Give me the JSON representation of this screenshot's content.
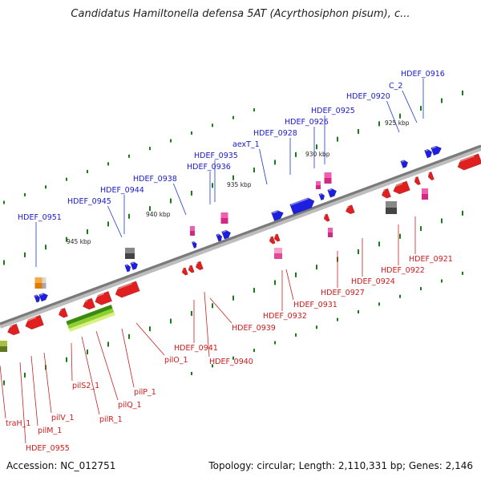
{
  "title": "Candidatus Hamiltonella defensa 5AT (Acyrthosiphon pisum), c...",
  "footer": {
    "accession": "Accession: NC_012751",
    "summary": "Topology: circular; Length: 2,110,331 bp; Genes: 2,146"
  },
  "colors": {
    "backbone": "#8a8a8a",
    "forward_label": "#1a1acc",
    "reverse_label": "#cc1a1a",
    "forward_gene": "#1e1ee0",
    "reverse_gene": "#e02020",
    "pseudo_pink": "#e0308a",
    "grey_feature": "#666666",
    "orange_feature": "#f08a10",
    "green_feature": "#5aa010",
    "tick_dot": "#1c7a1c"
  },
  "ticks": [
    "925 kbp",
    "930 kbp",
    "935 kbp",
    "940 kbp",
    "945 kbp"
  ],
  "forward_labels": [
    "HDEF_0916",
    "C_2",
    "HDEF_0920",
    "HDEF_0925",
    "HDEF_0926",
    "HDEF_0928",
    "aexT_1",
    "HDEF_0935",
    "HDEF_0936",
    "HDEF_0938",
    "HDEF_0944",
    "HDEF_0945",
    "HDEF_0951"
  ],
  "reverse_labels": [
    "HDEF_0921",
    "HDEF_0922",
    "HDEF_0924",
    "HDEF_0927",
    "HDEF_0931",
    "HDEF_0932",
    "HDEF_0939",
    "HDEF_0940",
    "HDEF_0941",
    "pilO_1",
    "pilP_1",
    "pilQ_1",
    "pilR_1",
    "pilS2_1",
    "pilV_1",
    "pilM_1",
    "traH_1",
    "HDEF_0955"
  ]
}
